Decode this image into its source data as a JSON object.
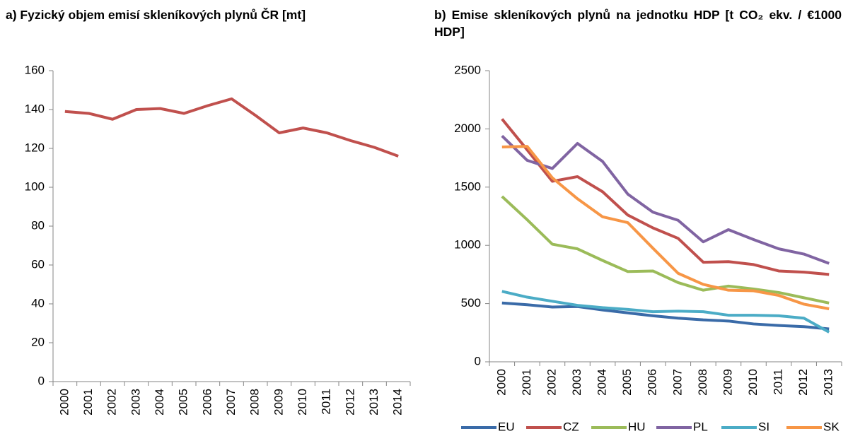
{
  "chart_data": [
    {
      "type": "line",
      "title": "a) Fyzický objem emisí skleníkových plynů ČR [mt]",
      "categories": [
        "2000",
        "2001",
        "2002",
        "2003",
        "2004",
        "2005",
        "2006",
        "2007",
        "2008",
        "2009",
        "2010",
        "2011",
        "2012",
        "2013",
        "2014"
      ],
      "values": [
        139,
        138,
        135,
        140,
        140.5,
        138,
        142,
        145.5,
        137,
        128,
        130.5,
        128,
        124,
        120.5,
        116
      ],
      "color": "#c0504d",
      "ylim": [
        0,
        160
      ],
      "yticks": [
        0,
        20,
        40,
        60,
        80,
        100,
        120,
        140,
        160
      ],
      "grid": false
    },
    {
      "type": "line",
      "title": "b) Emise skleníkových plynů na jednotku HDP [t CO₂ ekv. / €1000 HDP]",
      "categories": [
        "2000",
        "2001",
        "2002",
        "2003",
        "2004",
        "2005",
        "2006",
        "2007",
        "2008",
        "2009",
        "2010",
        "2011",
        "2012",
        "2013"
      ],
      "series": [
        {
          "name": "EU",
          "color": "#3a6ba8",
          "values": [
            505,
            490,
            470,
            475,
            445,
            420,
            395,
            375,
            360,
            350,
            325,
            312,
            302,
            282
          ]
        },
        {
          "name": "CZ",
          "color": "#c0504d",
          "values": [
            2085,
            1820,
            1550,
            1590,
            1460,
            1260,
            1150,
            1060,
            855,
            860,
            835,
            780,
            770,
            750
          ]
        },
        {
          "name": "HU",
          "color": "#9bbb59",
          "values": [
            1420,
            1220,
            1010,
            970,
            870,
            775,
            780,
            680,
            615,
            650,
            625,
            595,
            550,
            505
          ]
        },
        {
          "name": "PL",
          "color": "#8064a2",
          "values": [
            1940,
            1730,
            1660,
            1875,
            1720,
            1440,
            1285,
            1215,
            1030,
            1135,
            1050,
            970,
            925,
            845
          ]
        },
        {
          "name": "SI",
          "color": "#4bacc6",
          "values": [
            605,
            555,
            520,
            485,
            465,
            450,
            430,
            435,
            430,
            400,
            400,
            395,
            375,
            255
          ]
        },
        {
          "name": "SK",
          "color": "#f79646",
          "values": [
            1845,
            1850,
            1580,
            1400,
            1245,
            1195,
            975,
            760,
            665,
            615,
            610,
            570,
            495,
            455
          ]
        }
      ],
      "ylim": [
        0,
        2500
      ],
      "yticks": [
        0,
        500,
        1000,
        1500,
        2000,
        2500
      ],
      "grid": false,
      "legend": "bottom"
    }
  ]
}
